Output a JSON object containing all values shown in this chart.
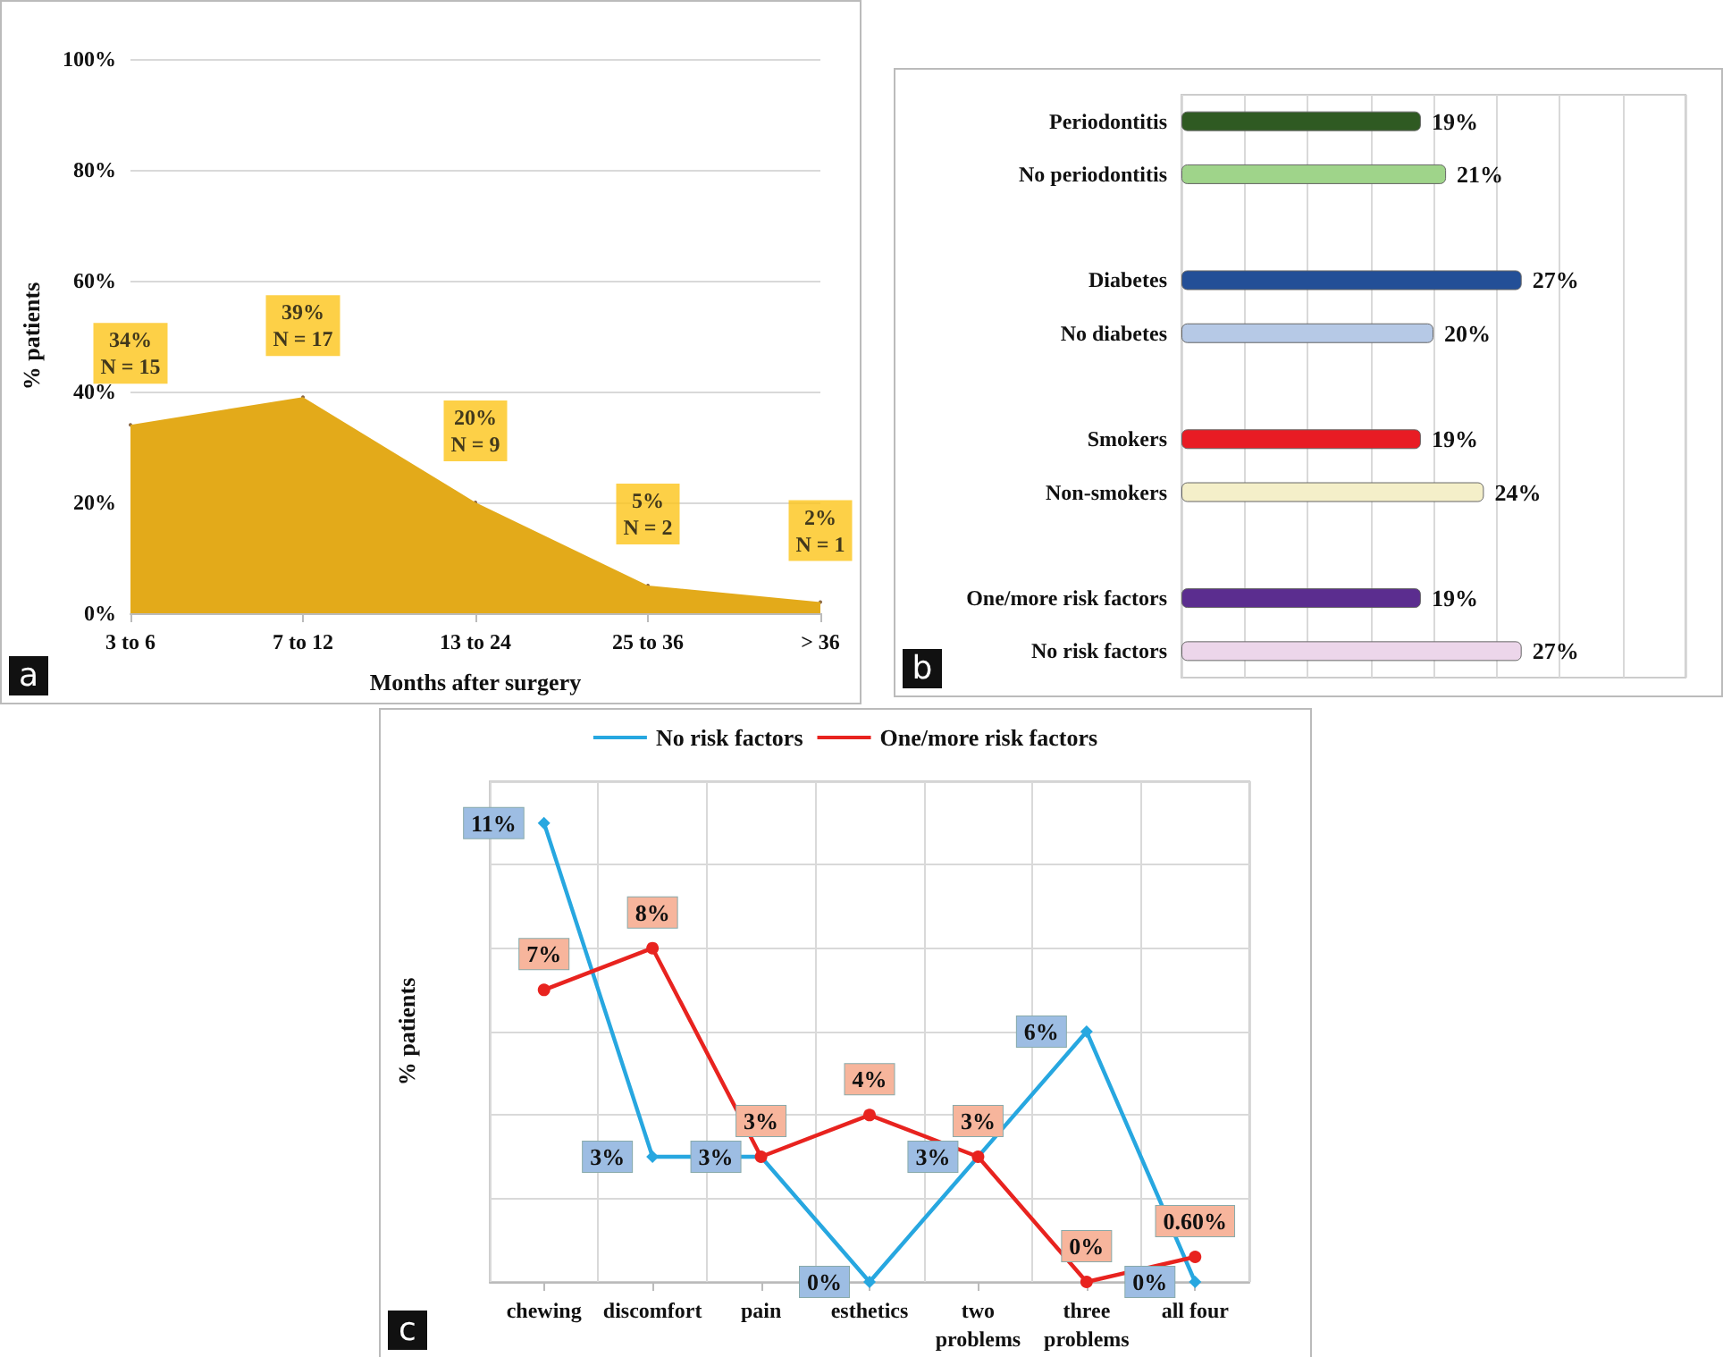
{
  "chart_data": [
    {
      "type": "area",
      "categories": [
        "3 to 6",
        "7 to 12",
        "13 to 24",
        "25 to 36",
        "> 36"
      ],
      "values": [
        34,
        39,
        20,
        5,
        2
      ],
      "color": "#e3aa1a",
      "xlabel": "Months after surgery",
      "ylabel": "% patients",
      "ylim": [
        0,
        100
      ],
      "yticks": [
        {
          "value": 0,
          "label": "0%"
        },
        {
          "value": 20,
          "label": "20%"
        },
        {
          "value": 40,
          "label": "40%"
        },
        {
          "value": 60,
          "label": "60%"
        },
        {
          "value": 80,
          "label": "80%"
        },
        {
          "value": 100,
          "label": "100%"
        }
      ],
      "grid": "y",
      "annotations": [
        {
          "text": "34%\nN = 15",
          "x": "3 to 6",
          "y": 34
        },
        {
          "text": "39%\nN = 17",
          "x": "7 to 12",
          "y": 39
        },
        {
          "text": "20%\nN = 9",
          "x": "13 to 24",
          "y": 20
        },
        {
          "text": "5%\nN = 2",
          "x": "25 to 36",
          "y": 5
        },
        {
          "text": "2%\nN = 1",
          "x": "> 36",
          "y": 2
        },
        "a"
      ]
    },
    {
      "type": "bar",
      "orientation": "horizontal",
      "categories": [
        "Periodontitis",
        "No periodontitis",
        null,
        "Diabetes",
        "No diabetes",
        null,
        "Smokers",
        "Non-smokers",
        null,
        "One/more risk factors",
        "No risk factors"
      ],
      "values": [
        19,
        21,
        null,
        27,
        20,
        null,
        19,
        24,
        null,
        19,
        27
      ],
      "colors": [
        "#2f5a22",
        "#9fd48a",
        "#ffffff",
        "#234f97",
        "#b6c9e6",
        "#ffffff",
        "#e81c24",
        "#f4efc9",
        "#ffffff",
        "#5b2d8f",
        "#ecd6ea"
      ],
      "value_labels": [
        "19%",
        "21%",
        null,
        "27%",
        "20%",
        null,
        "19%",
        "24%",
        null,
        "19%",
        "27%"
      ],
      "xlim": [
        0,
        40
      ],
      "xticks": [
        {
          "value": 0,
          "label": null
        },
        {
          "value": 5,
          "label": null
        },
        {
          "value": 10,
          "label": null
        },
        {
          "value": 15,
          "label": null
        },
        {
          "value": 20,
          "label": null
        },
        {
          "value": 25,
          "label": null
        },
        {
          "value": 30,
          "label": null
        },
        {
          "value": 35,
          "label": null
        },
        {
          "value": 40,
          "label": null
        }
      ],
      "grid": "x",
      "tick_labels": "y",
      "annotations": [
        "b"
      ]
    },
    {
      "type": "line",
      "categories": [
        "chewing",
        "discomfort",
        "pain",
        "esthetics",
        "two\nproblems",
        "three\nproblems",
        "all four"
      ],
      "ylabel": "% patients",
      "ylim": [
        0,
        12
      ],
      "yticks": [
        {
          "value": 0,
          "label": null
        },
        {
          "value": 2,
          "label": null
        },
        {
          "value": 4,
          "label": null
        },
        {
          "value": 6,
          "label": null
        },
        {
          "value": 8,
          "label": null
        },
        {
          "value": 10,
          "label": null
        },
        {
          "value": 12,
          "label": null
        }
      ],
      "grid": true,
      "tick_labels": "x",
      "legend": "top",
      "series": [
        {
          "name": "No risk factors",
          "color": "#27a7e0",
          "marker": "diamond",
          "values": [
            11,
            3,
            3,
            0,
            3,
            6,
            0
          ],
          "value_labels": [
            "11%",
            "3%",
            "3%",
            "0%",
            "3%",
            "6%",
            "0%"
          ]
        },
        {
          "name": "One/more risk factors",
          "color": "#e8231f",
          "marker": "circle",
          "values": [
            7,
            8,
            3,
            4,
            3,
            0,
            0.6
          ],
          "value_labels": [
            "7%",
            "8%",
            "3%",
            "4%",
            "3%",
            "0%",
            "0.60%"
          ]
        }
      ],
      "annotations": [
        "c"
      ]
    }
  ]
}
